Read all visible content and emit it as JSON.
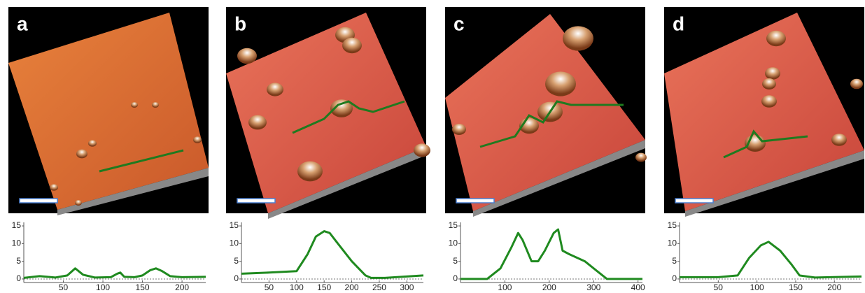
{
  "chart_data": [
    {
      "type": "line",
      "title": "a",
      "color": "#1f8a1f",
      "x": [
        0,
        20,
        40,
        55,
        65,
        75,
        90,
        110,
        118,
        122,
        127,
        140,
        150,
        160,
        167,
        175,
        185,
        200,
        230
      ],
      "values": [
        0.3,
        0.8,
        0.4,
        1,
        3,
        1.2,
        0.4,
        0.5,
        1.5,
        1.8,
        0.6,
        0.5,
        1,
        2.5,
        3,
        2.2,
        0.8,
        0.5,
        0.6
      ],
      "xlim": [
        0,
        230
      ],
      "ylim": [
        -1,
        16
      ],
      "xticks": [
        50,
        100,
        150,
        200
      ],
      "yticks": [
        0,
        5,
        10,
        15
      ]
    },
    {
      "type": "line",
      "title": "b",
      "color": "#1f8a1f",
      "x": [
        0,
        50,
        100,
        120,
        135,
        150,
        160,
        175,
        200,
        225,
        235,
        260,
        300,
        330
      ],
      "values": [
        1.5,
        1.8,
        2.2,
        7,
        12,
        13.5,
        13,
        10,
        5,
        1,
        0.3,
        0.3,
        0.7,
        1
      ],
      "xlim": [
        0,
        330
      ],
      "ylim": [
        -1,
        16
      ],
      "xticks": [
        50,
        100,
        150,
        200,
        250,
        300
      ],
      "yticks": [
        0,
        5,
        10,
        15
      ]
    },
    {
      "type": "line",
      "title": "c",
      "color": "#1f8a1f",
      "x": [
        0,
        60,
        90,
        115,
        130,
        140,
        160,
        175,
        190,
        210,
        220,
        230,
        245,
        280,
        310,
        330,
        350,
        410
      ],
      "values": [
        0,
        0,
        3,
        9,
        13,
        11,
        5,
        5,
        8,
        13,
        14,
        8,
        7,
        5,
        2,
        0,
        0,
        0
      ],
      "xlim": [
        0,
        410
      ],
      "ylim": [
        -1,
        16
      ],
      "xticks": [
        100,
        200,
        300,
        400
      ],
      "yticks": [
        0,
        5,
        10,
        15
      ]
    },
    {
      "type": "line",
      "title": "d",
      "color": "#1f8a1f",
      "x": [
        0,
        50,
        75,
        90,
        105,
        115,
        130,
        145,
        155,
        175,
        235
      ],
      "values": [
        0.5,
        0.5,
        1,
        6,
        9.5,
        10.5,
        8,
        4,
        1,
        0.4,
        0.7
      ],
      "xlim": [
        0,
        235
      ],
      "ylim": [
        -1,
        16
      ],
      "xticks": [
        50,
        100,
        150,
        200
      ],
      "yticks": [
        0,
        5,
        10,
        15
      ]
    }
  ]
}
